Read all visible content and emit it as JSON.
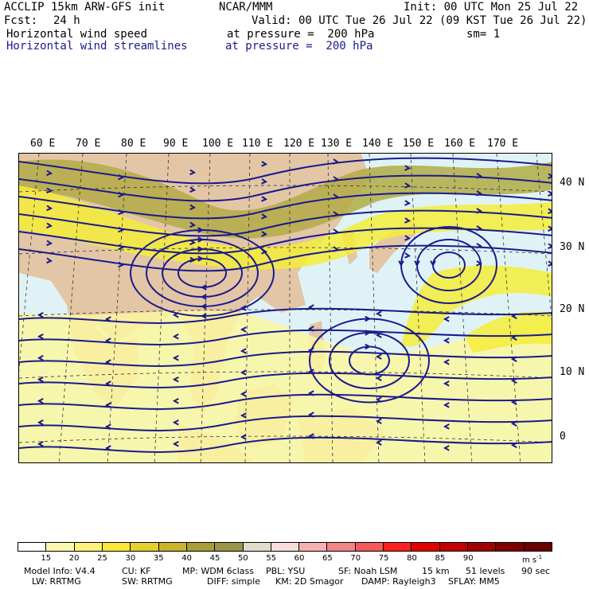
{
  "header": {
    "model_title": "ACCLIP 15km ARW-GFS init",
    "center": "NCAR/MMM",
    "init": "Init: 00 UTC Mon 25 Jul 22",
    "fcst_label": "Fcst:",
    "fcst_value": "24 h",
    "valid": "Valid: 00 UTC Tue 26 Jul 22 (09 KST Tue 26 Jul 22)",
    "field1_name": "Horizontal wind speed",
    "field1_level": "at pressure =  200 hPa",
    "field1_sm": "sm= 1",
    "field2_name": "Horizontal wind streamlines",
    "field2_level": "at pressure =  200 hPa"
  },
  "map": {
    "lon_labels": [
      "60 E",
      "70 E",
      "80 E",
      "90 E",
      "100 E",
      "110 E",
      "120 E",
      "130 E",
      "140 E",
      "150 E",
      "160 E",
      "170 E"
    ],
    "lat_labels": [
      "40 N",
      "30 N",
      "20 N",
      "10 N",
      "0"
    ],
    "colors": {
      "ocean": "#dff3f6",
      "land": "#e3c6a5",
      "jet_yellow": "#f5ec3a",
      "jet_light": "#fbf6a0",
      "jet_olive": "#b3aa45",
      "streamline": "#1a1a8c"
    }
  },
  "colorbar": {
    "values": [
      "15",
      "20",
      "25",
      "30",
      "35",
      "40",
      "45",
      "50",
      "55",
      "60",
      "65",
      "70",
      "75",
      "80",
      "85",
      "90"
    ],
    "unit": "m s",
    "unit_exp": "-1",
    "colors": [
      "#ffffff",
      "#fdf8b0",
      "#fff27a",
      "#fbe63c",
      "#e4cf2c",
      "#c9b42b",
      "#a99d3c",
      "#9c9449",
      "#e0dcc9",
      "#f9dcdc",
      "#f7b0b0",
      "#f28585",
      "#f45a5a",
      "#ff2020",
      "#e00000",
      "#c00000",
      "#a00000",
      "#800000",
      "#6a0000"
    ]
  },
  "footer": {
    "line1": [
      "Model Info: V4.4",
      "CU: KF",
      "MP: WDM 6class",
      "PBL: YSU",
      "SF: Noah LSM",
      "15 km",
      "51 levels",
      "90 sec"
    ],
    "line2": [
      "LW: RRTMG",
      "SW: RRTMG",
      "DIFF: simple",
      "KM: 2D Smagor",
      "DAMP: Rayleigh3",
      "SFLAY: MM5"
    ]
  }
}
